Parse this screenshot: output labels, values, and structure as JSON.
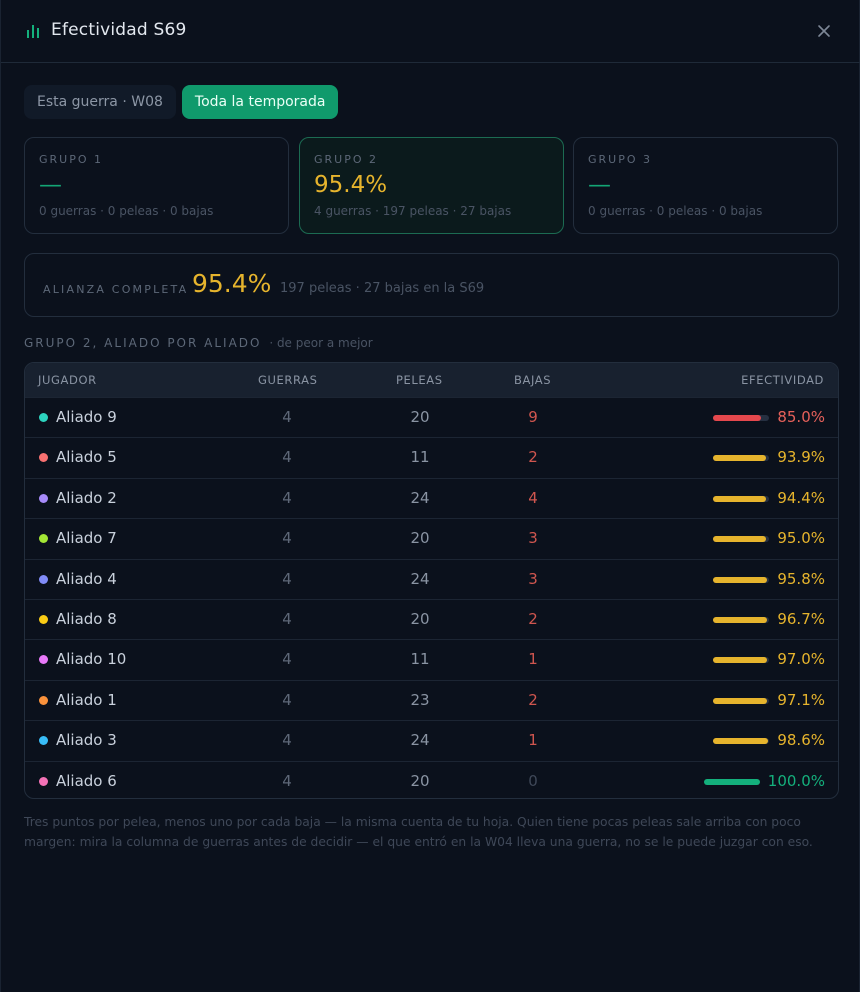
{
  "header": {
    "title": "Efectividad S69",
    "title_icon": "bar-chart-icon",
    "close_icon": "close-icon"
  },
  "tabs": [
    {
      "label": "Esta guerra · W08",
      "active": false
    },
    {
      "label": "Toda la temporada",
      "active": true
    }
  ],
  "groups": [
    {
      "label": "GRUPO 1",
      "value": "—",
      "stats": "0 guerras · 0 peleas · 0 bajas"
    },
    {
      "label": "GRUPO 2",
      "value": "95.4%",
      "stats": "4 guerras · 197 peleas · 27 bajas"
    },
    {
      "label": "GRUPO 3",
      "value": "—",
      "stats": "0 guerras · 0 peleas · 0 bajas"
    }
  ],
  "alliance": {
    "label": "ALIANZA COMPLETA",
    "value": "95.4%",
    "stats": "197 peleas · 27 bajas en la S69"
  },
  "section": {
    "title": "GRUPO 2, ALIADO POR ALIADO",
    "subtitle": "· de peor a mejor"
  },
  "table": {
    "headers": {
      "player": "JUGADOR",
      "wars": "GUERRAS",
      "fights": "PELEAS",
      "kills": "BAJAS",
      "effectiveness": "EFECTIVIDAD"
    },
    "rows": [
      {
        "name": "Aliado 9",
        "dot": "#2dd4bf",
        "wars": "4",
        "fights": "20",
        "kills": "9",
        "pct": "85.0%",
        "level": 0.85
      },
      {
        "name": "Aliado 5",
        "dot": "#f87171",
        "wars": "4",
        "fights": "11",
        "kills": "2",
        "pct": "93.9%",
        "level": 0.939
      },
      {
        "name": "Aliado 2",
        "dot": "#a78bfa",
        "wars": "4",
        "fights": "24",
        "kills": "4",
        "pct": "94.4%",
        "level": 0.944
      },
      {
        "name": "Aliado 7",
        "dot": "#a3e635",
        "wars": "4",
        "fights": "20",
        "kills": "3",
        "pct": "95.0%",
        "level": 0.95
      },
      {
        "name": "Aliado 4",
        "dot": "#818cf8",
        "wars": "4",
        "fights": "24",
        "kills": "3",
        "pct": "95.8%",
        "level": 0.958
      },
      {
        "name": "Aliado 8",
        "dot": "#facc15",
        "wars": "4",
        "fights": "20",
        "kills": "2",
        "pct": "96.7%",
        "level": 0.967
      },
      {
        "name": "Aliado 10",
        "dot": "#e879f9",
        "wars": "4",
        "fights": "11",
        "kills": "1",
        "pct": "97.0%",
        "level": 0.97
      },
      {
        "name": "Aliado 1",
        "dot": "#fb923c",
        "wars": "4",
        "fights": "23",
        "kills": "2",
        "pct": "97.1%",
        "level": 0.971
      },
      {
        "name": "Aliado 3",
        "dot": "#38bdf8",
        "wars": "4",
        "fights": "24",
        "kills": "1",
        "pct": "98.6%",
        "level": 0.986
      },
      {
        "name": "Aliado 6",
        "dot": "#f472b6",
        "wars": "4",
        "fights": "20",
        "kills": "0",
        "pct": "100.0%",
        "level": 1.0
      }
    ]
  },
  "footnote": "Tres puntos por pelea, menos uno por cada baja — la misma cuenta de tu hoja. Quien tiene pocas peleas sale arriba con poco margen: mira la columna de guerras antes de decidir — el que entró en la W04 lleva una guerra, no se le puede juzgar con eso.",
  "colors": {
    "bar_low": "#e5484d",
    "bar_mid": "#e6b42d",
    "bar_full": "#14b07c",
    "kills_positive": "#d0564f",
    "kills_zero": "#3f4858",
    "pct_low": "#e5605a",
    "pct_mid": "#e6b42d",
    "pct_full": "#14b07c",
    "accent": "#109a6c"
  }
}
